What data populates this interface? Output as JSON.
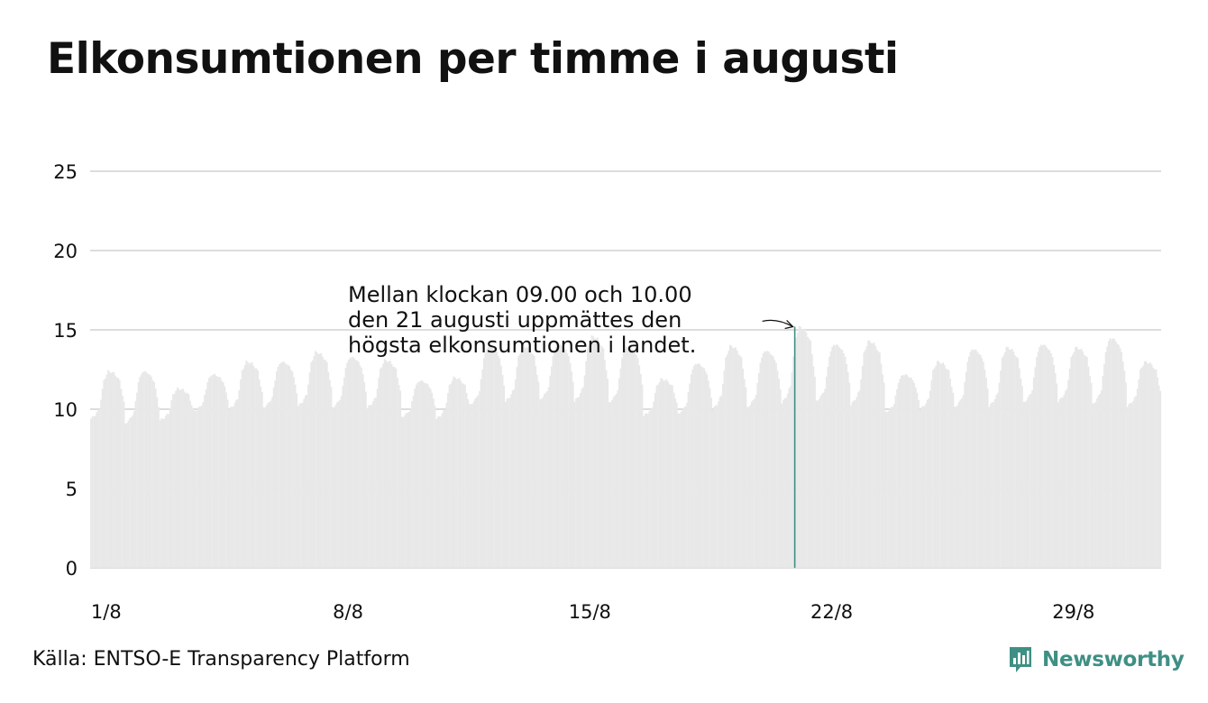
{
  "title": "Elkonsumtionen per timme i augusti",
  "source": "Källa: ENTSO-E Transparency Platform",
  "brand": {
    "name": "Newsworthy",
    "logo_icon": "bar-chart-speech-bubble-icon",
    "color": "#3f8f84"
  },
  "colors": {
    "bars": "#e8e8e8",
    "highlight": "#3f8f84",
    "grid": "#dddddd",
    "text": "#111111"
  },
  "chart_data": {
    "type": "bar",
    "title": "Elkonsumtionen per timme i augusti",
    "xlabel": "",
    "ylabel": "",
    "ylim": [
      0,
      25
    ],
    "yticks": [
      0,
      5,
      10,
      15,
      20,
      25
    ],
    "xticks": [
      {
        "day": 1,
        "label": "1/8"
      },
      {
        "day": 8,
        "label": "8/8"
      },
      {
        "day": 15,
        "label": "15/8"
      },
      {
        "day": 22,
        "label": "22/8"
      },
      {
        "day": 29,
        "label": "29/8"
      }
    ],
    "grid": true,
    "legend": "none",
    "days": 31,
    "hours_per_day": 24,
    "daily_min": [
      9.4,
      9.1,
      9.3,
      9.9,
      10.0,
      10.1,
      10.2,
      10.1,
      10.1,
      9.5,
      9.4,
      10.3,
      10.5,
      10.6,
      10.5,
      10.4,
      9.6,
      9.7,
      10.0,
      10.1,
      10.4,
      10.5,
      10.3,
      9.8,
      10.0,
      10.1,
      10.2,
      10.4,
      10.5,
      10.3,
      10.2
    ],
    "daily_max": [
      12.4,
      12.4,
      11.3,
      12.2,
      13.0,
      13.0,
      13.6,
      13.3,
      13.1,
      11.8,
      12.0,
      14.0,
      14.0,
      14.1,
      14.6,
      14.0,
      11.9,
      12.9,
      14.0,
      13.7,
      15.2,
      14.1,
      14.3,
      12.2,
      13.0,
      13.8,
      13.9,
      14.1,
      13.9,
      14.5,
      13.0
    ],
    "highlight": {
      "day": 21,
      "hour": 9,
      "value": 15.2
    },
    "annotation": {
      "lines": [
        "Mellan klockan 09.00 och 10.00",
        "den 21 augusti uppmättes den",
        "högsta elkonsumtionen i landet."
      ]
    }
  }
}
